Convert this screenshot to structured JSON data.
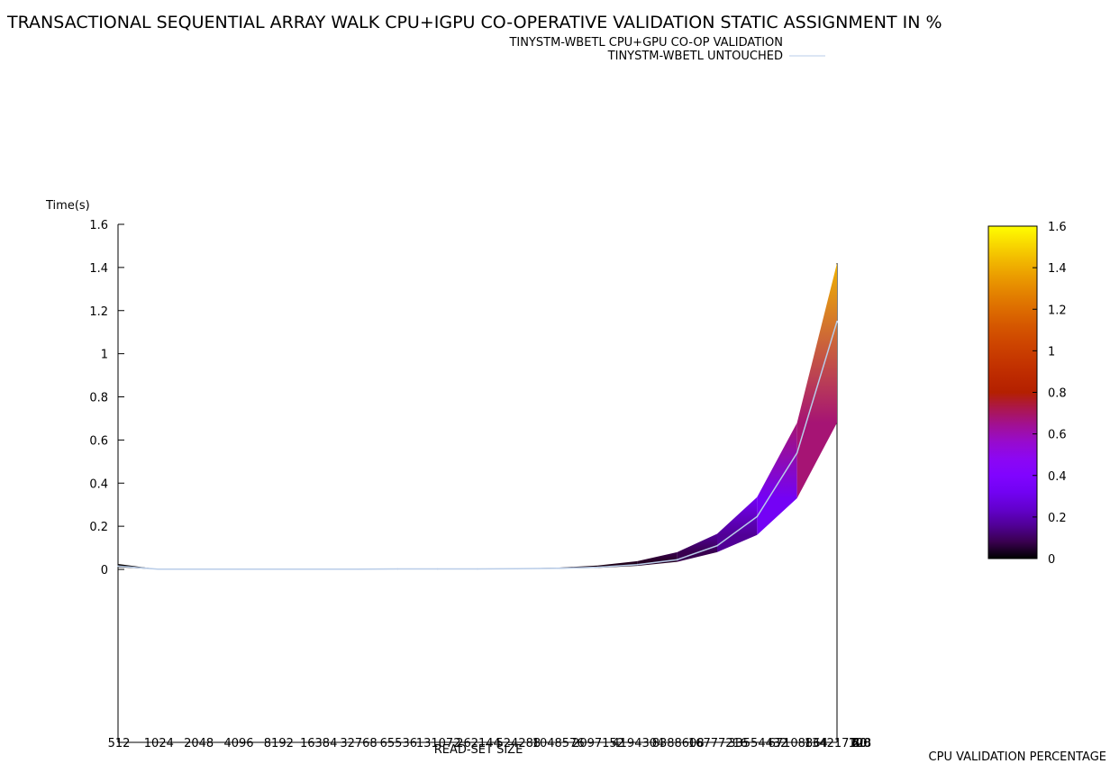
{
  "chart_data": {
    "type": "area",
    "title": "TRANSACTIONAL SEQUENTIAL ARRAY WALK CPU+IGPU CO-OPERATIVE VALIDATION STATIC ASSIGNMENT IN %",
    "xlabel": "READ-SET SIZE",
    "ylabel": "Time(s)",
    "zlabel": "CPU VALIDATION PERCENTAGE",
    "categories": [
      "512",
      "1024",
      "2048",
      "4096",
      "8192",
      "16384",
      "32768",
      "65536",
      "131072",
      "262144",
      "524288",
      "1048576",
      "2097152",
      "4194304",
      "8388608",
      "16777216",
      "33554432",
      "67108864",
      "134217728"
    ],
    "x_tick_labels": [
      "512",
      "1024",
      "2048",
      "4096",
      "8192",
      "16384",
      "32768",
      "65536",
      "131072",
      "262144",
      "524288",
      "1048576",
      "2097152",
      "4194304",
      "8388608",
      "16777216",
      "33554432",
      "67108864",
      "134217728"
    ],
    "x_tick_labels_overlap": [
      "100",
      "80",
      "60",
      "40",
      "20",
      "0"
    ],
    "yticks": [
      "1.6",
      "1.4",
      "1.2",
      "1",
      "0.8",
      "0.6",
      "0.4",
      "0.2",
      "0"
    ],
    "ylim": [
      0,
      1.6
    ],
    "colorbar": {
      "ticks": [
        "1.6",
        "1.4",
        "1.2",
        "1",
        "0.8",
        "0.6",
        "0.4",
        "0.2",
        "0"
      ],
      "range": [
        0,
        1.6
      ]
    },
    "series": [
      {
        "name": "TINYSTM-WBETL CPU+GPU CO-OP VALIDATION",
        "upper": [
          0.025,
          0.001,
          0.001,
          0.001,
          0.001,
          0.001,
          0.001,
          0.002,
          0.002,
          0.003,
          0.004,
          0.008,
          0.018,
          0.038,
          0.08,
          0.165,
          0.335,
          0.68,
          1.42
        ],
        "lower": [
          0.01,
          0.0,
          0.0,
          0.0,
          0.0,
          0.0,
          0.0,
          0.001,
          0.001,
          0.001,
          0.002,
          0.003,
          0.007,
          0.016,
          0.035,
          0.08,
          0.16,
          0.33,
          0.68
        ]
      },
      {
        "name": "TINYSTM-WBETL UNTOUCHED",
        "values": [
          0.015,
          0.001,
          0.001,
          0.001,
          0.001,
          0.001,
          0.001,
          0.002,
          0.002,
          0.002,
          0.003,
          0.005,
          0.01,
          0.022,
          0.045,
          0.11,
          0.245,
          0.54,
          1.15
        ],
        "color": "#b8cce8"
      }
    ]
  }
}
